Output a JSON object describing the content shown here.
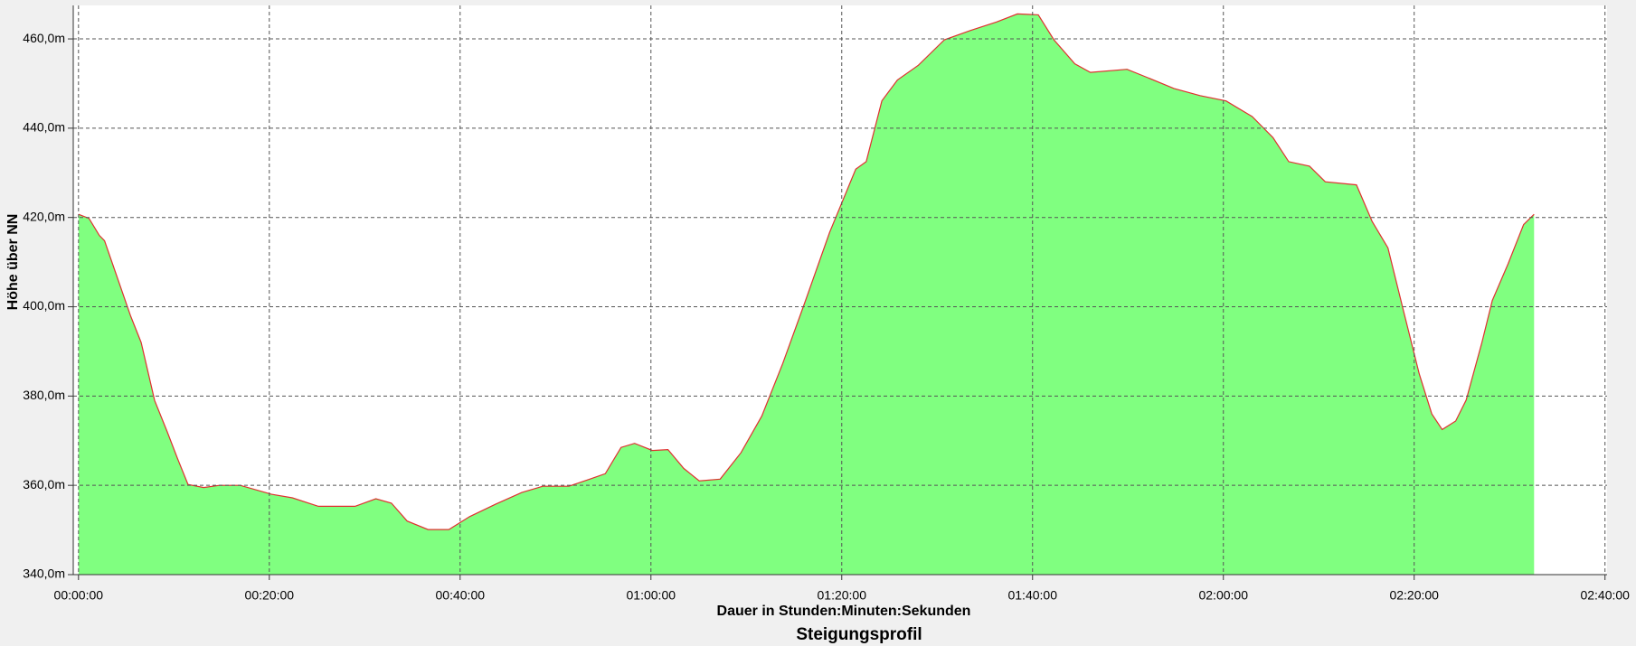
{
  "chart_data": {
    "type": "area",
    "title": "Steigungsprofil",
    "x_label": "Dauer in Stunden:Minuten:Sekunden",
    "y_label": "Höhe über NN",
    "x": [
      0,
      66,
      131,
      164,
      230,
      328,
      394,
      479,
      558,
      623,
      689,
      787,
      886,
      1017,
      1214,
      1345,
      1509,
      1739,
      1870,
      1968,
      2067,
      2198,
      2329,
      2460,
      2624,
      2788,
      2920,
      3084,
      3215,
      3313,
      3412,
      3497,
      3609,
      3707,
      3806,
      3904,
      4035,
      4166,
      4297,
      4429,
      4560,
      4724,
      4888,
      4954,
      5052,
      5150,
      5282,
      5446,
      5610,
      5774,
      5905,
      6036,
      6134,
      6266,
      6364,
      6594,
      6725,
      6889,
      7053,
      7217,
      7381,
      7512,
      7611,
      7742,
      7841,
      8037,
      8136,
      8235,
      8333,
      8432,
      8511,
      8576,
      8661,
      8727,
      8826,
      8891,
      8990,
      9088,
      9154
    ],
    "series": [
      {
        "color": "#80ff80",
        "line_color": "#e03030",
        "values": [
          420.7,
          419.8,
          416,
          414.8,
          408,
          397.9,
          392,
          379,
          372,
          366,
          360.2,
          359.5,
          360,
          360,
          358,
          357.2,
          355.3,
          355.3,
          357,
          356,
          352,
          350.1,
          350.1,
          353,
          355.8,
          358.4,
          359.8,
          359.8,
          361.4,
          362.6,
          368.5,
          369.4,
          367.8,
          368,
          363.8,
          361,
          361.4,
          367.3,
          375.5,
          387.3,
          400.2,
          416.7,
          430.8,
          432.5,
          446.1,
          450.8,
          454.1,
          459.8,
          461.9,
          463.8,
          465.6,
          465.4,
          459.8,
          454.4,
          452.5,
          453.2,
          451.3,
          448.9,
          447.3,
          446.1,
          442.6,
          437.9,
          432.5,
          431.5,
          428,
          427.3,
          419.1,
          413.2,
          399.1,
          384.9,
          376,
          372.5,
          374.4,
          379.1,
          392,
          401.4,
          409.6,
          418.4,
          420.7
        ]
      }
    ],
    "xlim": [
      -33,
      9613
    ],
    "ylim": [
      340,
      467.5
    ],
    "xticks": [
      {
        "value": 0,
        "label": "00:00:00"
      },
      {
        "value": 1200,
        "label": "00:20:00"
      },
      {
        "value": 2400,
        "label": "00:40:00"
      },
      {
        "value": 3600,
        "label": "01:00:00"
      },
      {
        "value": 4800,
        "label": "01:20:00"
      },
      {
        "value": 6000,
        "label": "01:40:00"
      },
      {
        "value": 7200,
        "label": "02:00:00"
      },
      {
        "value": 8400,
        "label": "02:20:00"
      },
      {
        "value": 9600,
        "label": "02:40:00"
      }
    ],
    "yticks": [
      {
        "value": 340,
        "label": "340,0m"
      },
      {
        "value": 360,
        "label": "360,0m"
      },
      {
        "value": 380,
        "label": "380,0m"
      },
      {
        "value": 400,
        "label": "400,0m"
      },
      {
        "value": 420,
        "label": "420,0m"
      },
      {
        "value": 440,
        "label": "440,0m"
      },
      {
        "value": 460,
        "label": "460,0m"
      }
    ],
    "grid": true
  }
}
